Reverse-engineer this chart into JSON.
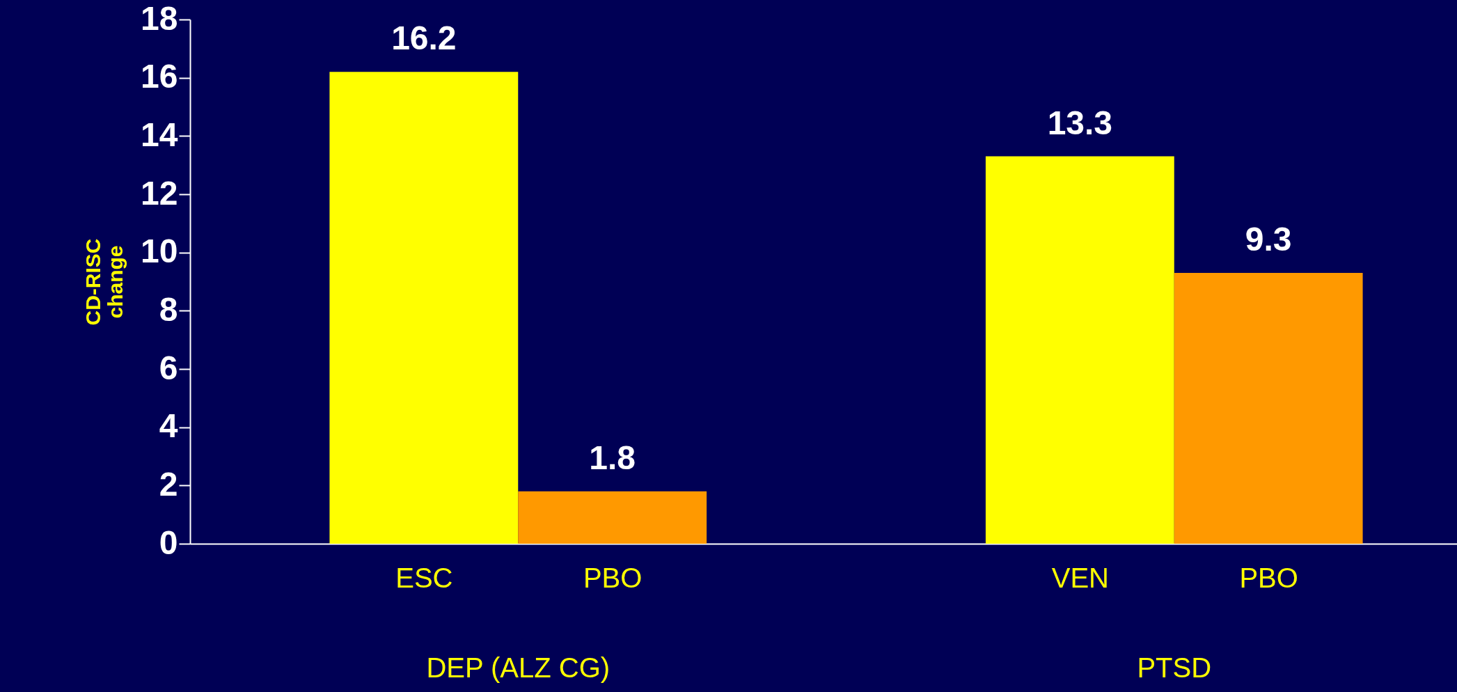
{
  "chart_data": {
    "type": "bar",
    "ylabel": "CD-RISC change",
    "categories": [
      "ESC",
      "PBO",
      "VEN",
      "PBO"
    ],
    "values": [
      16.2,
      1.8,
      13.3,
      9.3
    ],
    "colors": [
      "#ffff00",
      "#ff9900",
      "#ffff00",
      "#ff9900"
    ],
    "ylim": [
      0,
      18
    ],
    "yticks": [
      0,
      2,
      4,
      6,
      8,
      10,
      12,
      14,
      16,
      18
    ],
    "data_labels": true,
    "grid": false,
    "annotations": [
      "DEP (ALZ CG)",
      "PTSD"
    ]
  }
}
